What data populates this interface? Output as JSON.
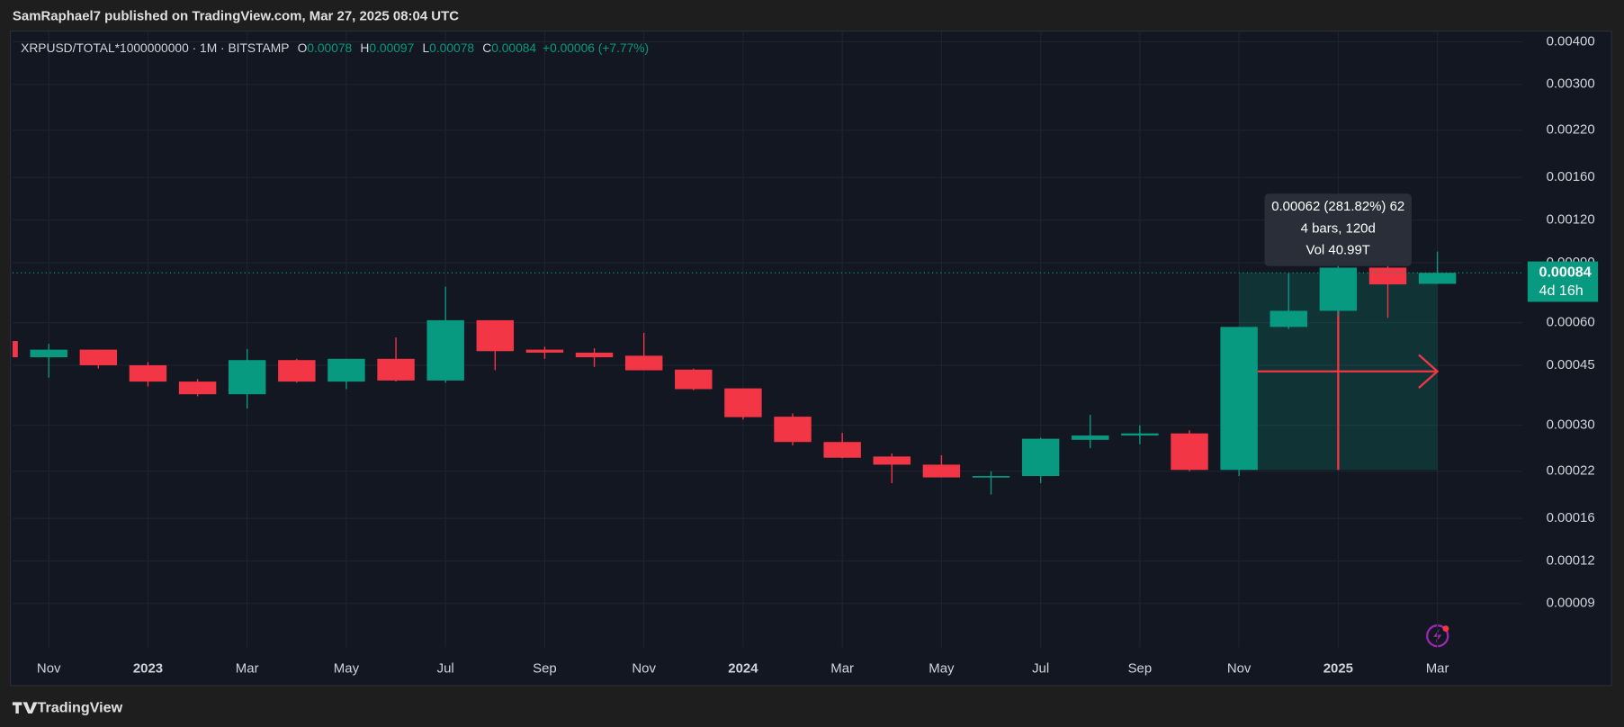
{
  "header": {
    "publisher": "SamRaphael7 published on TradingView.com, Mar 27, 2025 08:04 UTC",
    "brand": "TradingView"
  },
  "chart_data": {
    "type": "candlestick",
    "legend": {
      "symbol": "XRPUSD/TOTAL*1000000000 · 1M · BITSTAMP",
      "ohlc": [
        {
          "label": "O",
          "value": "0.00078"
        },
        {
          "label": "H",
          "value": "0.00097"
        },
        {
          "label": "L",
          "value": "0.00078"
        },
        {
          "label": "C",
          "value": "0.00084"
        }
      ],
      "change": "+0.00006 (+7.77%)"
    },
    "categories": [
      null,
      "Nov",
      null,
      "2023",
      null,
      "Mar",
      null,
      "May",
      null,
      "Jul",
      null,
      "Sep",
      null,
      "Nov",
      null,
      "2024",
      null,
      "Mar",
      null,
      "May",
      null,
      "Jul",
      null,
      "Sep",
      null,
      "Nov",
      null,
      "2025",
      null,
      "Mar"
    ],
    "open": [
      0.00053,
      0.000475,
      0.0005,
      0.00045,
      0.000403,
      0.00037,
      0.000466,
      0.000403,
      0.00047,
      0.000406,
      0.00061,
      0.0005,
      0.00049,
      0.00048,
      0.000437,
      0.000385,
      0.000318,
      0.000268,
      0.000243,
      0.00023,
      0.000211,
      0.000213,
      0.000272,
      0.00028,
      0.000284,
      0.000222,
      0.000583,
      0.00065,
      0.00087,
      0.00078
    ],
    "high": [
      0.00054,
      0.00052,
      0.0005,
      0.00046,
      0.00041,
      0.000502,
      0.00047,
      0.00047,
      0.000543,
      0.000765,
      0.00061,
      0.00051,
      0.000505,
      0.00056,
      0.00044,
      0.000385,
      0.000325,
      0.000285,
      0.000248,
      0.000245,
      0.00022,
      0.000276,
      0.000322,
      0.0003,
      0.00029,
      0.000583,
      0.000836,
      0.000945,
      0.00088,
      0.00097
    ],
    "low": [
      0.00047,
      0.000414,
      0.00044,
      0.00039,
      0.000365,
      0.000336,
      0.0004,
      0.000383,
      0.000403,
      0.0004,
      0.000435,
      0.00047,
      0.000445,
      0.000435,
      0.00038,
      0.000312,
      0.000262,
      0.00024,
      0.000203,
      0.000211,
      0.000188,
      0.000203,
      0.000257,
      0.000264,
      0.00022,
      0.000213,
      0.000575,
      0.00063,
      0.00062,
      0.00078
    ],
    "close": [
      0.000475,
      0.0005,
      0.00045,
      0.000403,
      0.00037,
      0.000466,
      0.000403,
      0.00047,
      0.000406,
      0.00061,
      0.000495,
      0.00049,
      0.000475,
      0.000435,
      0.000383,
      0.000317,
      0.000268,
      0.000241,
      0.00023,
      0.000211,
      0.000213,
      0.000274,
      0.00028,
      0.000284,
      0.000222,
      0.000583,
      0.00065,
      0.00087,
      0.000777,
      0.00084
    ],
    "up_color": "#089981",
    "down_color": "#f23645",
    "log_scale": true,
    "grid": true,
    "ylim": [
      6.7e-05,
      0.0043
    ],
    "yticks": [
      {
        "value": 0.004,
        "label": "0.00400"
      },
      {
        "value": 0.003,
        "label": "0.00300"
      },
      {
        "value": 0.0022,
        "label": "0.00220"
      },
      {
        "value": 0.0016,
        "label": "0.00160"
      },
      {
        "value": 0.0012,
        "label": "0.00120"
      },
      {
        "value": 0.0009,
        "label": "0.00090"
      },
      {
        "value": 0.0006,
        "label": "0.00060"
      },
      {
        "value": 0.00045,
        "label": "0.00045"
      },
      {
        "value": 0.0003,
        "label": "0.00030"
      },
      {
        "value": 0.00022,
        "label": "0.00022"
      },
      {
        "value": 0.00016,
        "label": "0.00016"
      },
      {
        "value": 0.00012,
        "label": "0.00012"
      },
      {
        "value": 9e-05,
        "label": "0.00009"
      }
    ],
    "price_label": "0.00084",
    "countdown": "4d 16h",
    "measure": {
      "lines": [
        "0.00062 (281.82%) 62",
        "4 bars, 120d",
        "Vol 40.99T"
      ]
    }
  }
}
